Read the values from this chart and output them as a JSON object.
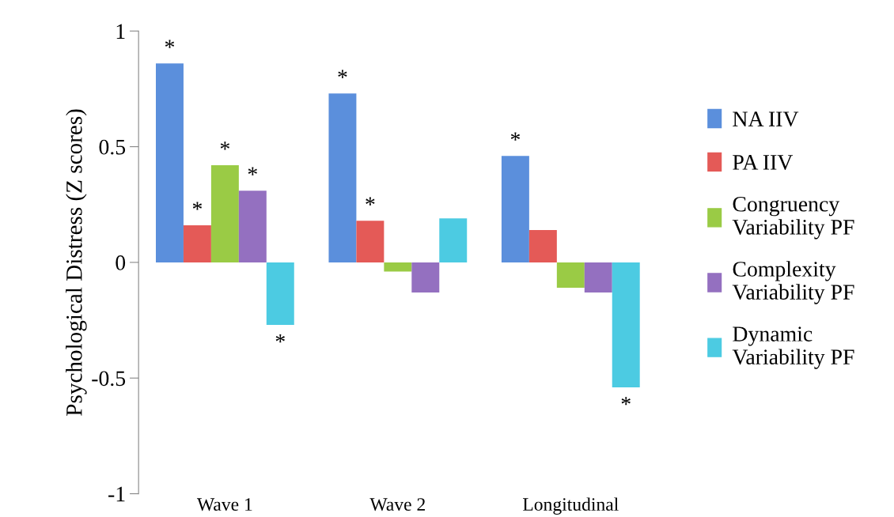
{
  "chart_data": {
    "type": "bar",
    "ylabel": "Psychological Distress (Z scores)",
    "categories": [
      "Wave 1",
      "Wave 2",
      "Longitudinal"
    ],
    "series": [
      {
        "name": "NA IIV",
        "color": "#5b8fdc",
        "values": [
          0.86,
          0.73,
          0.46
        ],
        "value_labels": [
          "*",
          "*",
          "*"
        ]
      },
      {
        "name": "PA IIV",
        "color": "#e45a57",
        "values": [
          0.16,
          0.18,
          0.14
        ],
        "value_labels": [
          "*",
          "*",
          null
        ]
      },
      {
        "name": "Congruency\nVariability PF",
        "color": "#9acb45",
        "values": [
          0.42,
          -0.04,
          -0.11
        ],
        "value_labels": [
          "*",
          null,
          null
        ]
      },
      {
        "name": "Complexity\nVariability PF",
        "color": "#9470c0",
        "values": [
          0.31,
          -0.13,
          -0.13
        ],
        "value_labels": [
          "*",
          null,
          null
        ]
      },
      {
        "name": "Dynamic\nVariability PF",
        "color": "#4ccbe2",
        "values": [
          -0.27,
          0.19,
          -0.54
        ],
        "value_labels": [
          "*",
          null,
          "*"
        ]
      }
    ],
    "ylim": [
      -1,
      1
    ],
    "yticks": [
      -1,
      -0.5,
      0,
      0.5,
      1
    ],
    "legend": "right"
  }
}
